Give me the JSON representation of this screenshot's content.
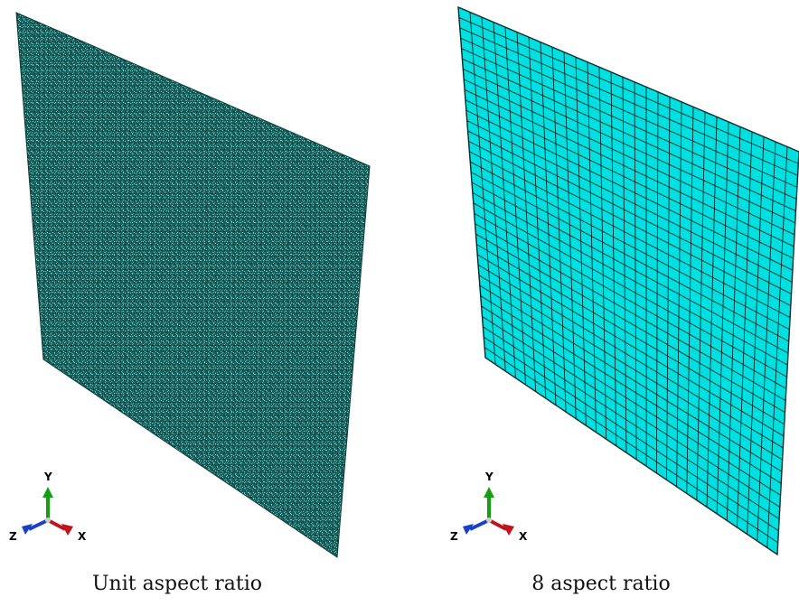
{
  "panels": [
    {
      "caption": "Unit aspect ratio",
      "colors": {
        "fill": "#1f6e6b",
        "line": "#0c3a38",
        "speckle": "#4fd1c9"
      },
      "triad": {
        "x": "X",
        "y": "Y",
        "z": "Z"
      }
    },
    {
      "caption": "8 aspect ratio",
      "colors": {
        "fill": "#00e0e0",
        "line": "#0b2a2a"
      },
      "triad": {
        "x": "X",
        "y": "Y",
        "z": "Z"
      }
    }
  ],
  "triad_colors": {
    "x": "#c0141c",
    "y": "#12a012",
    "z": "#1a3fc8"
  }
}
